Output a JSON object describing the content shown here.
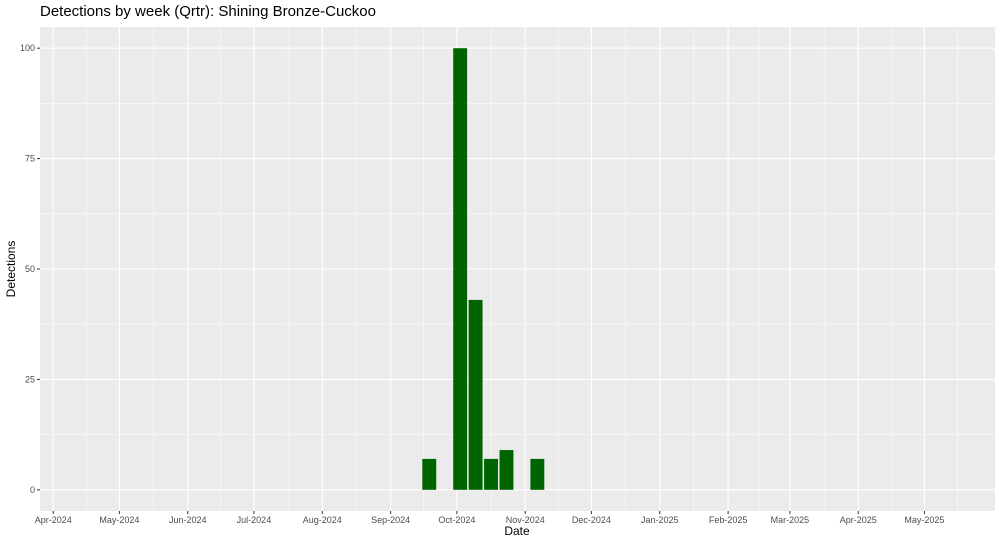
{
  "chart_data": {
    "type": "bar",
    "title": "Detections by week (Qrtr): Shining Bronze-Cuckoo",
    "xlabel": "Date",
    "ylabel": "Detections",
    "x_axis": {
      "type": "date",
      "range": [
        "2024-03-26",
        "2025-06-02"
      ],
      "ticks": [
        {
          "date": "2024-04-01",
          "label": "Apr-2024"
        },
        {
          "date": "2024-05-01",
          "label": "May-2024"
        },
        {
          "date": "2024-06-01",
          "label": "Jun-2024"
        },
        {
          "date": "2024-07-01",
          "label": "Jul-2024"
        },
        {
          "date": "2024-08-01",
          "label": "Aug-2024"
        },
        {
          "date": "2024-09-01",
          "label": "Sep-2024"
        },
        {
          "date": "2024-10-01",
          "label": "Oct-2024"
        },
        {
          "date": "2024-11-01",
          "label": "Nov-2024"
        },
        {
          "date": "2024-12-01",
          "label": "Dec-2024"
        },
        {
          "date": "2025-01-01",
          "label": "Jan-2025"
        },
        {
          "date": "2025-02-01",
          "label": "Feb-2025"
        },
        {
          "date": "2025-03-01",
          "label": "Mar-2025"
        },
        {
          "date": "2025-04-01",
          "label": "Apr-2025"
        },
        {
          "date": "2025-05-01",
          "label": "May-2025"
        }
      ]
    },
    "y_axis": {
      "range": [
        -4.8,
        104.8
      ],
      "ticks": [
        0,
        25,
        50,
        75,
        100
      ]
    },
    "grid": true,
    "legend": "none",
    "bar_color": "#006400",
    "panel_background": "#EBEBEB",
    "grid_color": "#FFFFFF",
    "bars": [
      {
        "week_start": "2024-09-15",
        "value": 7
      },
      {
        "week_start": "2024-09-29",
        "value": 100
      },
      {
        "week_start": "2024-10-06",
        "value": 43
      },
      {
        "week_start": "2024-10-13",
        "value": 7
      },
      {
        "week_start": "2024-10-20",
        "value": 9
      },
      {
        "week_start": "2024-11-03",
        "value": 7
      }
    ]
  }
}
